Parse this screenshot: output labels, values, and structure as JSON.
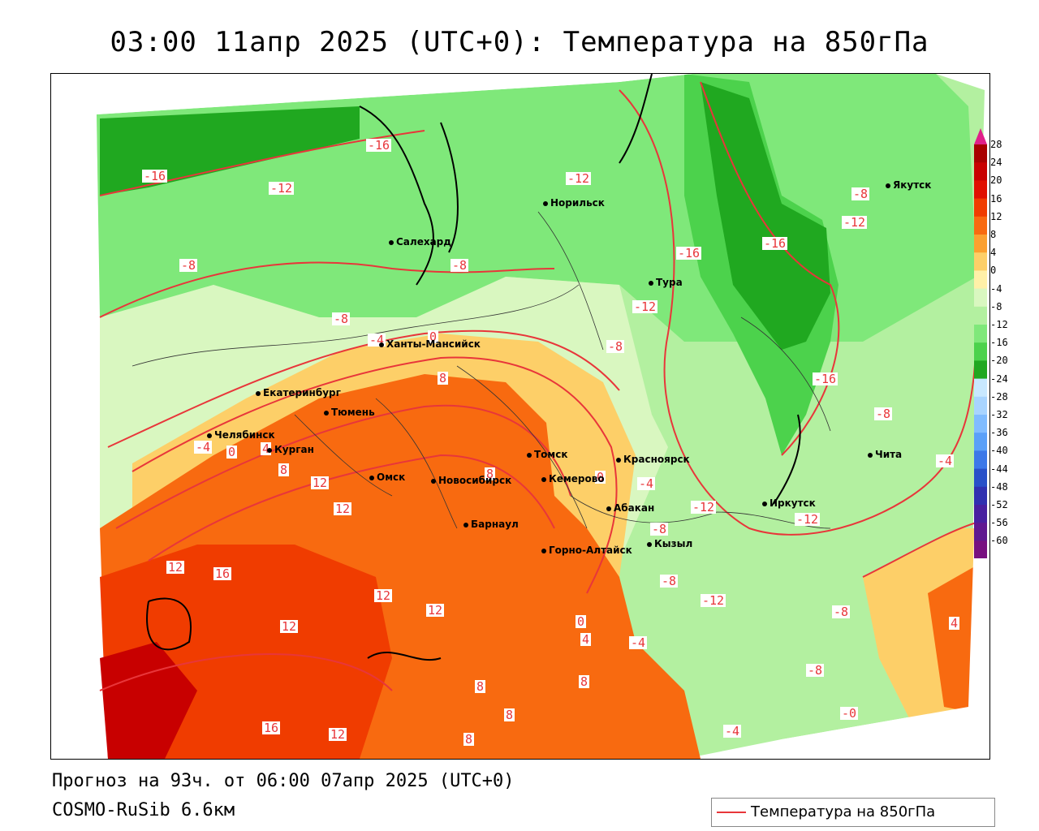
{
  "title": "03:00 11апр 2025 (UTC+0): Температура на 850гПа",
  "footer": {
    "forecast": "Прогноз на 93ч. от 06:00 07апр 2025 (UTC+0)",
    "model": "COSMO-RuSib 6.6км"
  },
  "legend": {
    "label": "Температура на 850гПа",
    "color": "#e8363a"
  },
  "colorbar": {
    "ticks": [
      "28",
      "24",
      "20",
      "16",
      "12",
      "8",
      "4",
      "0",
      "-4",
      "-8",
      "-12",
      "-16",
      "-20",
      "-24",
      "-28",
      "-32",
      "-36",
      "-40",
      "-44",
      "-48",
      "-52",
      "-56",
      "-60"
    ],
    "colors": [
      "#a80000",
      "#c80000",
      "#e01000",
      "#f03c00",
      "#f86a10",
      "#fba030",
      "#fdcf68",
      "#fff0a8",
      "#d9f7c0",
      "#b3f0a0",
      "#7fe87a",
      "#4cd24c",
      "#20a820",
      "#c8e8ff",
      "#a8d4ff",
      "#80bcff",
      "#5aa0f8",
      "#3c78e8",
      "#2850c8",
      "#3030b0",
      "#4820a0",
      "#601890",
      "#781080"
    ]
  },
  "cities": [
    {
      "name": "Якутск"
    },
    {
      "name": "Норильск"
    },
    {
      "name": "Салехард"
    },
    {
      "name": "Тура"
    },
    {
      "name": "Ханты-Мансийск"
    },
    {
      "name": "Екатеринбург"
    },
    {
      "name": "Тюмень"
    },
    {
      "name": "Челябинск"
    },
    {
      "name": "Курган"
    },
    {
      "name": "Омск"
    },
    {
      "name": "Новосибирск"
    },
    {
      "name": "Томск"
    },
    {
      "name": "Кемерово"
    },
    {
      "name": "Красноярск"
    },
    {
      "name": "Абакан"
    },
    {
      "name": "Барнаул"
    },
    {
      "name": "Горно-Алтайск"
    },
    {
      "name": "Кызыл"
    },
    {
      "name": "Иркутск"
    },
    {
      "name": "Чита"
    }
  ],
  "contour_labels": [
    "-16",
    "-16",
    "-12",
    "-12",
    "-12",
    "-8",
    "-8",
    "-8",
    "-16",
    "-16",
    "-8",
    "-12",
    "-16",
    "-8",
    "-8",
    "-4",
    "-4",
    "0",
    "-4",
    "0",
    "4",
    "8",
    "8",
    "12",
    "12",
    "8",
    "0",
    "-4",
    "-12",
    "-12",
    "-8",
    "-8",
    "12",
    "16",
    "12",
    "12",
    "12",
    "0",
    "4",
    "-4",
    "8",
    "-8",
    "-8",
    "8",
    "8",
    "4",
    "16",
    "12",
    "8",
    "-4",
    "-0",
    "-12"
  ]
}
